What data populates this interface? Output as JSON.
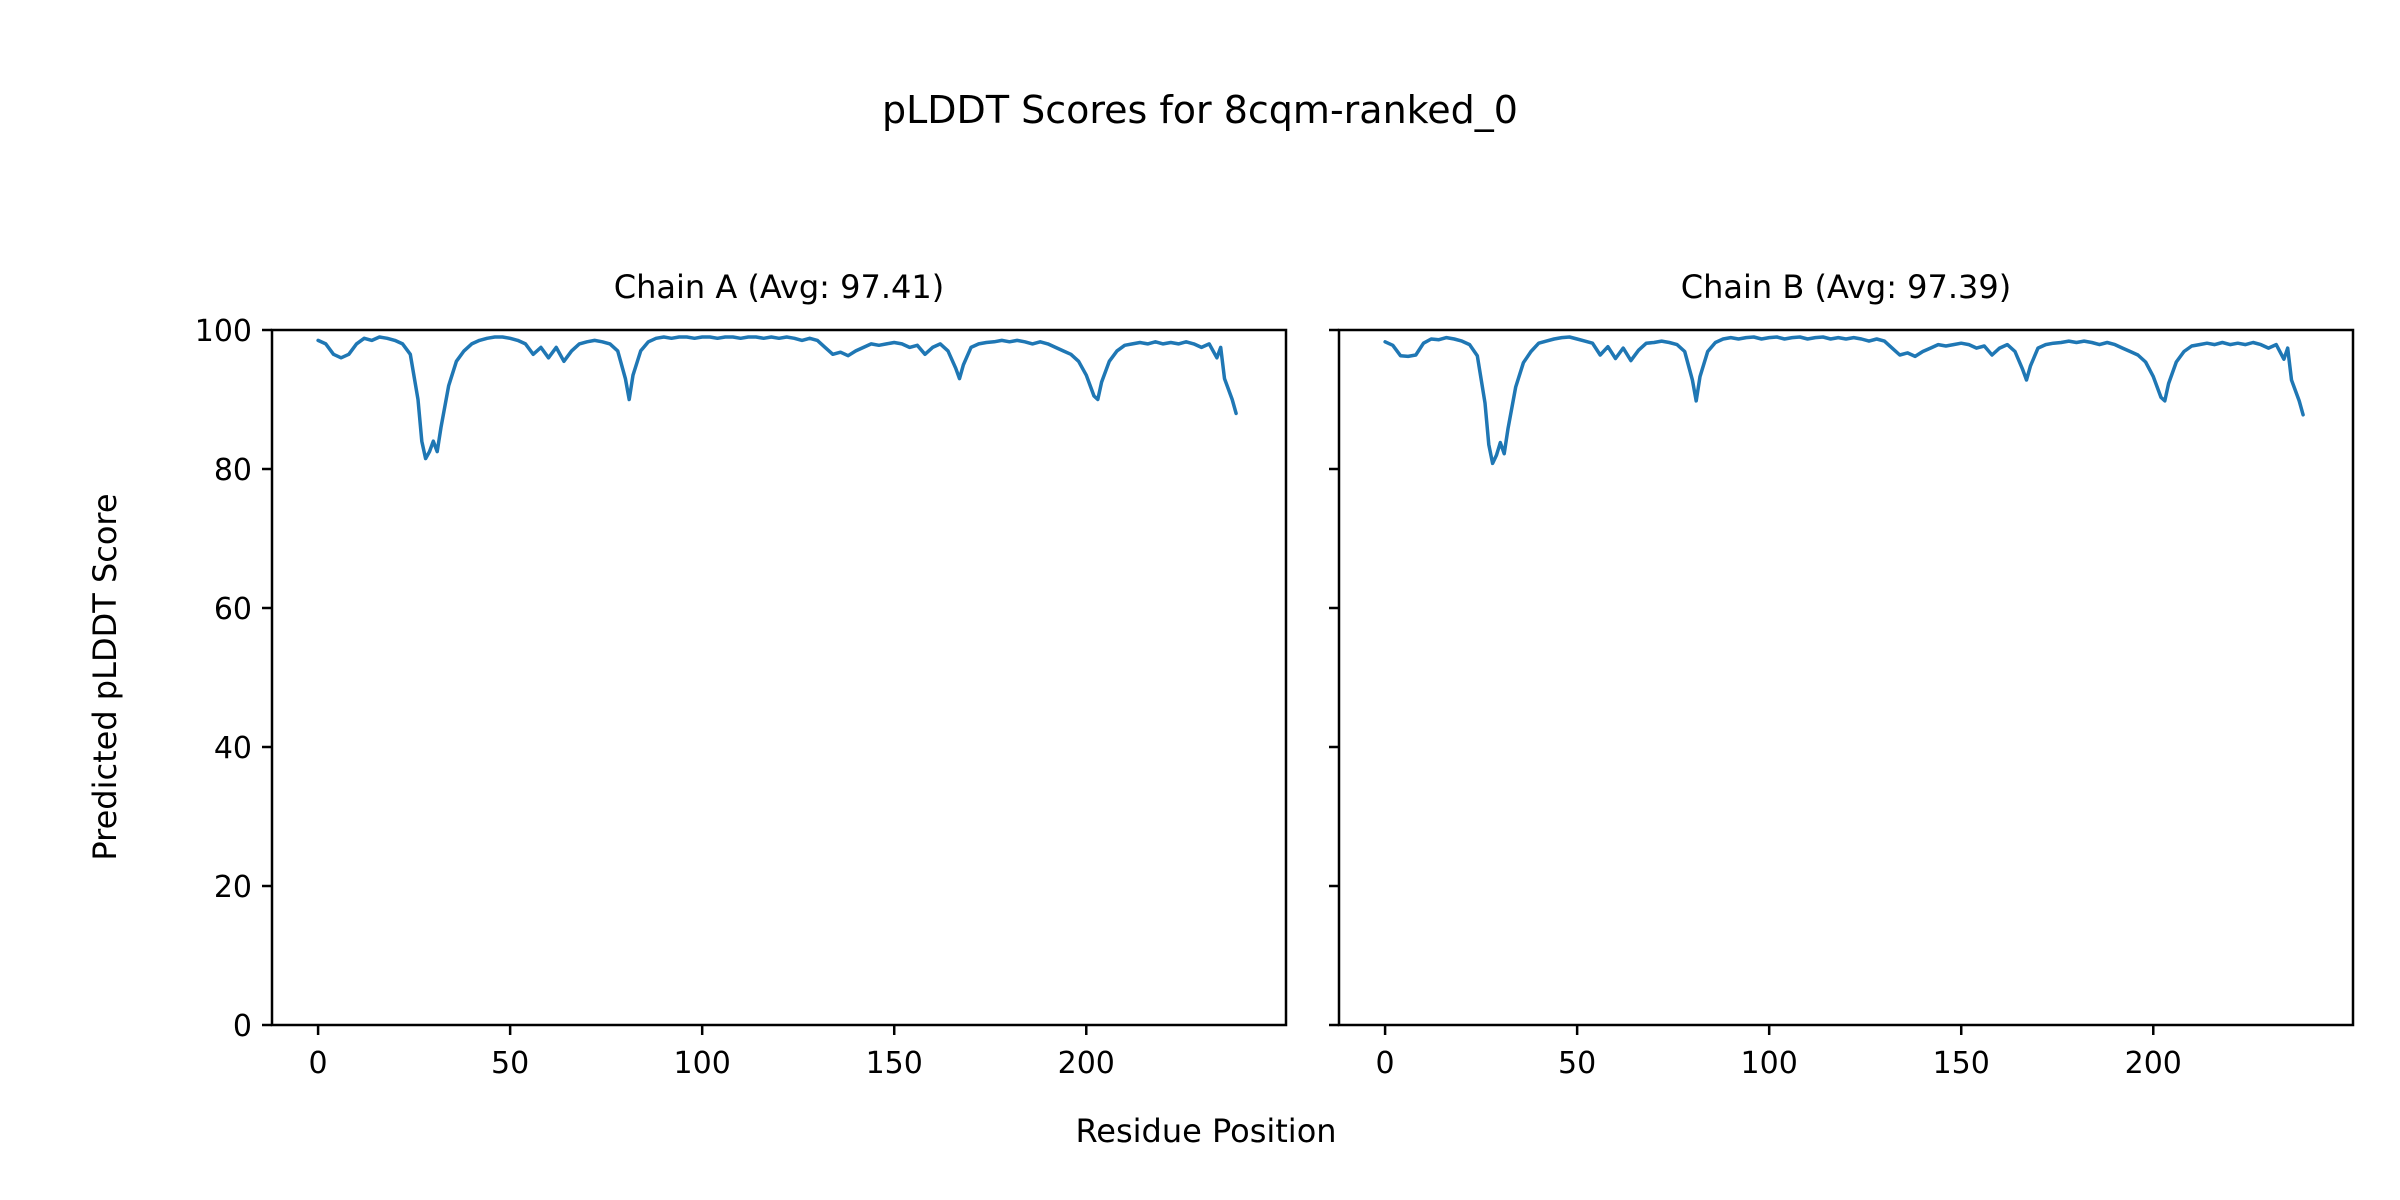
{
  "figure": {
    "title": "pLDDT Scores for 8cqm-ranked_0",
    "xlabel": "Residue Position",
    "ylabel": "Predicted pLDDT Score",
    "line_color": "#1f77b4",
    "axis_color": "#000000",
    "background": "#ffffff"
  },
  "chart_data": [
    {
      "type": "line",
      "title": "Chain A (Avg: 97.41)",
      "average": 97.41,
      "xlabel": "Residue Position",
      "ylabel": "Predicted pLDDT Score",
      "xlim": [
        -12,
        252
      ],
      "ylim": [
        0,
        100
      ],
      "xticks": [
        0,
        50,
        100,
        150,
        200
      ],
      "yticks": [
        0,
        20,
        40,
        60,
        80,
        100
      ],
      "grid": false,
      "legend": "none",
      "series": [
        {
          "name": "pLDDT",
          "x": [
            0,
            2,
            4,
            6,
            8,
            10,
            12,
            14,
            16,
            18,
            20,
            22,
            24,
            26,
            27,
            28,
            29,
            30,
            31,
            32,
            34,
            36,
            38,
            40,
            42,
            44,
            46,
            48,
            50,
            52,
            54,
            56,
            58,
            60,
            62,
            64,
            66,
            68,
            70,
            72,
            74,
            76,
            78,
            80,
            81,
            82,
            84,
            86,
            88,
            90,
            92,
            94,
            96,
            98,
            100,
            102,
            104,
            106,
            108,
            110,
            112,
            114,
            116,
            118,
            120,
            122,
            124,
            126,
            128,
            130,
            132,
            134,
            136,
            138,
            140,
            142,
            144,
            146,
            148,
            150,
            152,
            154,
            156,
            158,
            160,
            162,
            164,
            166,
            167,
            168,
            170,
            172,
            174,
            176,
            178,
            180,
            182,
            184,
            186,
            188,
            190,
            192,
            194,
            196,
            198,
            200,
            202,
            203,
            204,
            206,
            208,
            210,
            212,
            214,
            216,
            218,
            220,
            222,
            224,
            226,
            228,
            230,
            232,
            234,
            235,
            236,
            238,
            239
          ],
          "y": [
            98.5,
            98.0,
            96.5,
            96.0,
            96.5,
            98.0,
            98.8,
            98.5,
            99.0,
            98.8,
            98.5,
            98.0,
            96.5,
            90.0,
            84.0,
            81.5,
            82.5,
            84.0,
            82.5,
            86.0,
            92.0,
            95.5,
            97.0,
            98.0,
            98.5,
            98.8,
            99.0,
            99.0,
            98.8,
            98.5,
            98.0,
            96.5,
            97.5,
            96.0,
            97.5,
            95.5,
            97.0,
            98.0,
            98.3,
            98.5,
            98.3,
            98.0,
            97.0,
            93.0,
            90.0,
            93.5,
            97.0,
            98.3,
            98.8,
            99.0,
            98.8,
            99.0,
            99.0,
            98.8,
            99.0,
            99.0,
            98.8,
            99.0,
            99.0,
            98.8,
            99.0,
            99.0,
            98.8,
            99.0,
            98.8,
            99.0,
            98.8,
            98.5,
            98.8,
            98.5,
            97.5,
            96.5,
            96.8,
            96.3,
            97.0,
            97.5,
            98.0,
            97.8,
            98.0,
            98.2,
            98.0,
            97.5,
            97.8,
            96.5,
            97.5,
            98.0,
            97.0,
            94.5,
            93.0,
            95.0,
            97.5,
            98.0,
            98.2,
            98.3,
            98.5,
            98.3,
            98.5,
            98.3,
            98.0,
            98.3,
            98.0,
            97.5,
            97.0,
            96.5,
            95.5,
            93.5,
            90.5,
            90.0,
            92.5,
            95.5,
            97.0,
            97.8,
            98.0,
            98.2,
            98.0,
            98.3,
            98.0,
            98.2,
            98.0,
            98.3,
            98.0,
            97.5,
            98.0,
            96.0,
            97.5,
            93.0,
            90.0,
            88.0
          ]
        }
      ]
    },
    {
      "type": "line",
      "title": "Chain B (Avg: 97.39)",
      "average": 97.39,
      "xlabel": "Residue Position",
      "ylabel": "",
      "xlim": [
        -12,
        252
      ],
      "ylim": [
        0,
        100
      ],
      "xticks": [
        0,
        50,
        100,
        150,
        200
      ],
      "yticks": [
        0,
        20,
        40,
        60,
        80,
        100
      ],
      "grid": false,
      "legend": "none",
      "series": [
        {
          "name": "pLDDT",
          "x": [
            0,
            2,
            4,
            6,
            8,
            10,
            12,
            14,
            16,
            18,
            20,
            22,
            24,
            26,
            27,
            28,
            29,
            30,
            31,
            32,
            34,
            36,
            38,
            40,
            42,
            44,
            46,
            48,
            50,
            52,
            54,
            56,
            58,
            60,
            62,
            64,
            66,
            68,
            70,
            72,
            74,
            76,
            78,
            80,
            81,
            82,
            84,
            86,
            88,
            90,
            92,
            94,
            96,
            98,
            100,
            102,
            104,
            106,
            108,
            110,
            112,
            114,
            116,
            118,
            120,
            122,
            124,
            126,
            128,
            130,
            132,
            134,
            136,
            138,
            140,
            142,
            144,
            146,
            148,
            150,
            152,
            154,
            156,
            158,
            160,
            162,
            164,
            166,
            167,
            168,
            170,
            172,
            174,
            176,
            178,
            180,
            182,
            184,
            186,
            188,
            190,
            192,
            194,
            196,
            198,
            200,
            202,
            203,
            204,
            206,
            208,
            210,
            212,
            214,
            216,
            218,
            220,
            222,
            224,
            226,
            228,
            230,
            232,
            234,
            235,
            236,
            238,
            239
          ],
          "y": [
            98.3,
            97.8,
            96.3,
            96.2,
            96.4,
            98.1,
            98.7,
            98.6,
            98.9,
            98.7,
            98.4,
            97.9,
            96.3,
            89.5,
            83.5,
            80.8,
            82.0,
            83.8,
            82.2,
            85.8,
            91.8,
            95.3,
            96.9,
            98.1,
            98.4,
            98.7,
            98.9,
            99.0,
            98.7,
            98.4,
            98.1,
            96.4,
            97.6,
            95.9,
            97.4,
            95.6,
            97.1,
            98.1,
            98.2,
            98.4,
            98.2,
            97.9,
            96.9,
            92.8,
            89.8,
            93.3,
            96.9,
            98.2,
            98.7,
            98.9,
            98.7,
            98.9,
            99.0,
            98.7,
            98.9,
            99.0,
            98.7,
            98.9,
            99.0,
            98.7,
            98.9,
            99.0,
            98.7,
            98.9,
            98.7,
            98.9,
            98.7,
            98.4,
            98.7,
            98.4,
            97.4,
            96.4,
            96.7,
            96.2,
            96.9,
            97.4,
            97.9,
            97.7,
            97.9,
            98.1,
            97.9,
            97.4,
            97.7,
            96.4,
            97.4,
            97.9,
            96.9,
            94.3,
            92.8,
            94.8,
            97.4,
            97.9,
            98.1,
            98.2,
            98.4,
            98.2,
            98.4,
            98.2,
            97.9,
            98.2,
            97.9,
            97.4,
            96.9,
            96.4,
            95.4,
            93.3,
            90.3,
            89.8,
            92.3,
            95.4,
            96.9,
            97.7,
            97.9,
            98.1,
            97.9,
            98.2,
            97.9,
            98.1,
            97.9,
            98.2,
            97.9,
            97.4,
            97.9,
            95.8,
            97.4,
            92.8,
            89.8,
            87.8
          ]
        }
      ]
    }
  ]
}
